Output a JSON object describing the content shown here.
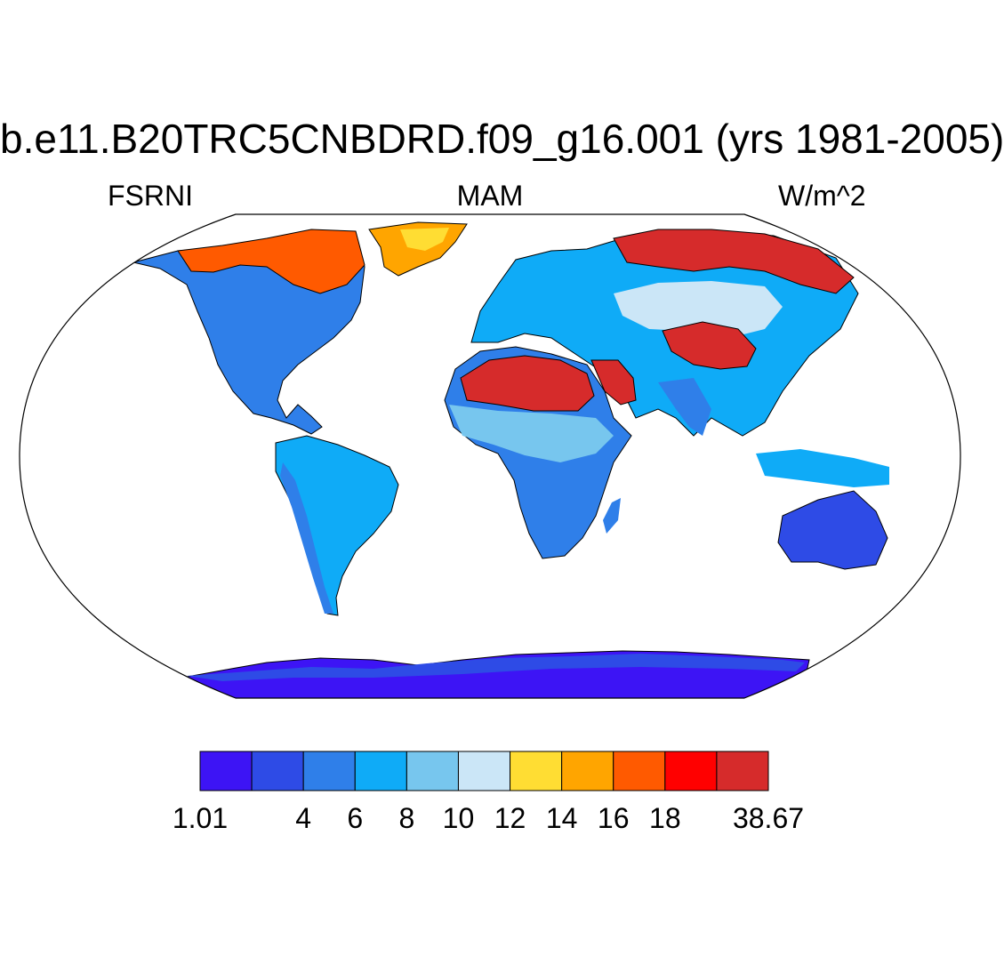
{
  "title": "b.e11.B20TRC5CNBDRD.f09_g16.001 (yrs 1981-2005)",
  "left_string": "FSRNI",
  "center_string": "MAM",
  "right_string": "W/m^2",
  "colorbar": {
    "colors": [
      "#3d14f5",
      "#2e4be6",
      "#2f7fe9",
      "#0fabf7",
      "#77c6ee",
      "#cbe6f7",
      "#ffdd33",
      "#ffa500",
      "#ff5a00",
      "#ff0000",
      "#d62b2b"
    ],
    "labels": [
      {
        "text": "1.01",
        "boundary": 0
      },
      {
        "text": "4",
        "boundary": 2
      },
      {
        "text": "6",
        "boundary": 3
      },
      {
        "text": "8",
        "boundary": 4
      },
      {
        "text": "10",
        "boundary": 5
      },
      {
        "text": "12",
        "boundary": 6
      },
      {
        "text": "14",
        "boundary": 7
      },
      {
        "text": "16",
        "boundary": 8
      },
      {
        "text": "18",
        "boundary": 9
      },
      {
        "text": "38.67",
        "boundary": 11
      }
    ]
  },
  "map": {
    "projection": "Robinson",
    "regions": [
      {
        "name": "north-america",
        "color": "#2f7fe9"
      },
      {
        "name": "canada-arctic",
        "color": "#ff5a00"
      },
      {
        "name": "greenland",
        "color": "#ffa500"
      },
      {
        "name": "south-america",
        "color": "#0fabf7"
      },
      {
        "name": "europe-asia",
        "color": "#0fabf7"
      },
      {
        "name": "siberia",
        "color": "#d62b2b"
      },
      {
        "name": "africa",
        "color": "#2f7fe9"
      },
      {
        "name": "sahara",
        "color": "#d62b2b"
      },
      {
        "name": "arabia",
        "color": "#d62b2b"
      },
      {
        "name": "gobi",
        "color": "#d62b2b"
      },
      {
        "name": "australia",
        "color": "#2e4be6"
      },
      {
        "name": "antarctica",
        "color": "#3d14f5"
      }
    ]
  }
}
